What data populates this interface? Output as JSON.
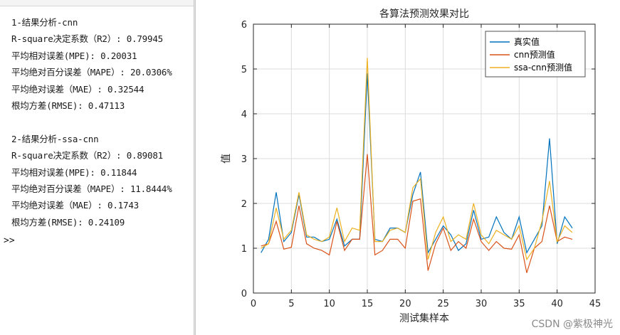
{
  "console": {
    "top_fragment": "",
    "lines": [
      "1-结果分析-cnn",
      "R-square决定系数（R2）: 0.79945",
      "平均相对误差(MPE): 0.20031",
      "平均绝对百分误差（MAPE）: 20.0306%",
      "平均绝对误差（MAE）: 0.32544",
      "根均方差(RMSE): 0.47113",
      "",
      "2-结果分析-ssa-cnn",
      "R-square决定系数（R2）: 0.89081",
      "平均相对误差(MPE): 0.11844",
      "平均绝对百分误差（MAPE）: 11.8444%",
      "平均绝对误差（MAE）: 0.1743",
      "根均方差(RMSE): 0.24109"
    ],
    "prompt": ">>"
  },
  "watermark": "CSDN @紫极神光",
  "chart_data": {
    "type": "line",
    "title": "各算法预测效果对比",
    "xlabel": "测试集样本",
    "ylabel": "值",
    "xlim": [
      0,
      45
    ],
    "ylim": [
      0,
      6
    ],
    "xticks": [
      0,
      5,
      10,
      15,
      20,
      25,
      30,
      35,
      40,
      45
    ],
    "yticks": [
      0,
      1,
      2,
      3,
      4,
      5,
      6
    ],
    "grid": true,
    "legend_position": "top-right",
    "x": [
      1,
      2,
      3,
      4,
      5,
      6,
      7,
      8,
      9,
      10,
      11,
      12,
      13,
      14,
      15,
      16,
      17,
      18,
      19,
      20,
      21,
      22,
      23,
      24,
      25,
      26,
      27,
      28,
      29,
      30,
      31,
      32,
      33,
      34,
      35,
      36,
      37,
      38,
      39,
      40,
      41,
      42
    ],
    "series": [
      {
        "name": "真实值",
        "color": "#0072BD",
        "values": [
          0.9,
          1.2,
          2.25,
          1.15,
          1.35,
          2.2,
          1.25,
          1.25,
          1.15,
          1.2,
          1.65,
          1.05,
          1.2,
          1.2,
          4.9,
          1.2,
          1.15,
          1.45,
          1.45,
          1.35,
          2.2,
          2.7,
          0.9,
          1.2,
          1.5,
          1.3,
          0.95,
          1.1,
          1.85,
          1.2,
          1.25,
          1.7,
          1.35,
          1.2,
          1.7,
          0.9,
          1.2,
          1.5,
          3.45,
          1.1,
          1.7,
          1.45
        ]
      },
      {
        "name": "cnn预测值",
        "color": "#D95319",
        "values": [
          1.05,
          1.1,
          1.6,
          0.98,
          1.02,
          1.95,
          1.1,
          1.0,
          0.95,
          0.85,
          1.6,
          0.95,
          1.2,
          1.2,
          3.1,
          0.85,
          0.95,
          1.2,
          1.2,
          1.0,
          2.05,
          2.1,
          0.5,
          1.1,
          1.45,
          0.95,
          1.15,
          1.0,
          1.65,
          1.15,
          0.95,
          1.15,
          1.0,
          0.98,
          1.3,
          0.45,
          1.0,
          1.15,
          1.95,
          1.15,
          1.25,
          1.2
        ]
      },
      {
        "name": "ssa-cnn预测值",
        "color": "#EDB120",
        "values": [
          1.0,
          1.1,
          1.9,
          1.2,
          1.4,
          2.25,
          1.3,
          1.2,
          1.15,
          1.25,
          1.9,
          1.15,
          1.45,
          1.4,
          5.25,
          1.15,
          1.15,
          1.4,
          1.45,
          1.35,
          2.35,
          2.55,
          0.75,
          1.35,
          1.7,
          1.15,
          1.3,
          1.2,
          2.0,
          1.3,
          1.1,
          1.4,
          1.3,
          1.2,
          1.5,
          0.75,
          1.0,
          1.6,
          2.5,
          1.15,
          1.5,
          1.35
        ]
      }
    ]
  }
}
